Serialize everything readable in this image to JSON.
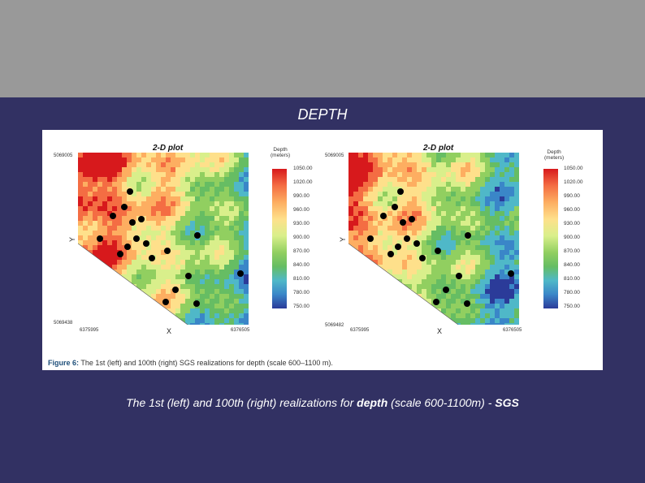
{
  "slide": {
    "title": "DEPTH",
    "caption_pre": "The 1st (left) and 100th (right) realizations for",
    "caption_bold": "depth",
    "caption_post": "(scale 600-1100m) -",
    "caption_tail": "SGS"
  },
  "figure": {
    "caption_label": "Figure 6:",
    "caption_text": "The 1st (left) and 100th (right) SGS realizations for depth (scale 600–1100 m).",
    "plots": [
      {
        "title": "2-D plot",
        "y_top": "5069005",
        "y_bottom": "5069438",
        "x_left": "6375995",
        "x_right": "6376505",
        "x_label": "X",
        "y_label": "Y",
        "legend_title_1": "Depth",
        "legend_title_2": "(meters)",
        "legend_values": [
          "1050.00",
          "1020.00",
          "990.00",
          "960.00",
          "930.00",
          "900.00",
          "870.00",
          "840.00",
          "810.00",
          "780.00",
          "750.00"
        ]
      },
      {
        "title": "2-D plot",
        "y_top": "5069005",
        "y_bottom": "5069482",
        "x_left": "6375995",
        "x_right": "6376505",
        "x_label": "X",
        "y_label": "Y",
        "legend_title_1": "Depth",
        "legend_title_2": "(meters)",
        "legend_values": [
          "1050.00",
          "1020.00",
          "990.00",
          "960.00",
          "930.00",
          "900.00",
          "870.00",
          "840.00",
          "810.00",
          "780.00",
          "750.00"
        ]
      }
    ]
  },
  "colors": {
    "background": "#323163",
    "top_band": "#999999",
    "palette": [
      "#d7191c",
      "#f46d43",
      "#fdae61",
      "#fee08b",
      "#d9ef8b",
      "#91cf60",
      "#66bd63",
      "#4fb8c8",
      "#3a86c8",
      "#2b3b99"
    ]
  }
}
